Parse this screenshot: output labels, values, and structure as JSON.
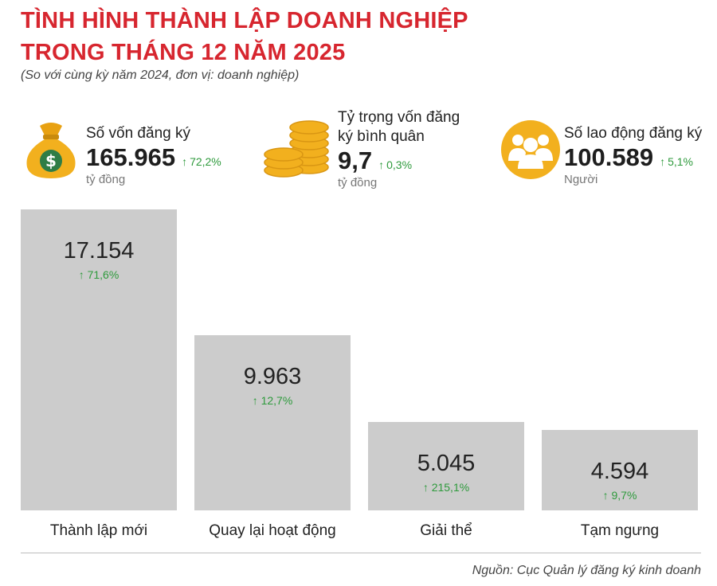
{
  "header": {
    "title_line1": "TÌNH HÌNH THÀNH LẬP DOANH NGHIỆP",
    "title_line2": "TRONG THÁNG 12 NĂM 2025",
    "subtitle": "(So với cùng kỳ năm 2024, đơn vị: doanh nghiệp)"
  },
  "kpis": [
    {
      "label": "Số vốn đăng ký",
      "value": "165.965",
      "change": "72,2%",
      "unit": "tỷ đồng",
      "icon": "money-bag-icon"
    },
    {
      "label_line1": "Tỷ trọng vốn đăng",
      "label_line2": "ký bình quân",
      "value": "9,7",
      "change": "0,3%",
      "unit": "tỷ đồng",
      "icon": "coin-stack-icon"
    },
    {
      "label": "Số lao động đăng ký",
      "value": "100.589",
      "change": "5,1%",
      "unit": "Người",
      "icon": "people-icon"
    }
  ],
  "colors": {
    "title": "#d7262f",
    "bar": "#cccccc",
    "up": "#2e9a3c",
    "icon": "#f2b01e"
  },
  "chart_data": {
    "type": "bar",
    "categories": [
      "Thành lập mới",
      "Quay lại hoạt động",
      "Giải thể",
      "Tạm ngưng"
    ],
    "values": [
      17154,
      9963,
      5045,
      4594
    ],
    "value_labels": [
      "17.154",
      "9.963",
      "5.045",
      "4.594"
    ],
    "changes": [
      "71,6%",
      "12,7%",
      "215,1%",
      "9,7%"
    ],
    "ylim": [
      0,
      17154
    ],
    "grid": false,
    "legend": "none"
  },
  "source": "Nguồn: Cục Quản lý đăng ký kinh doanh"
}
